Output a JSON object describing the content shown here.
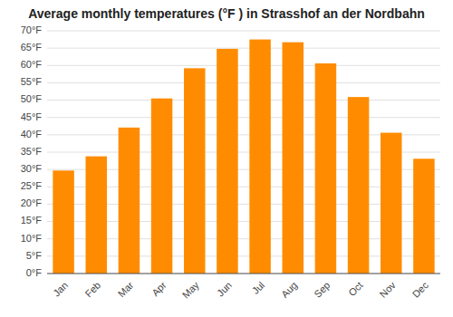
{
  "chart_data": {
    "type": "bar",
    "title": "Average monthly temperatures (°F ) in Strasshof an der Nordbahn",
    "categories": [
      "Jan",
      "Feb",
      "Mar",
      "Apr",
      "May",
      "Jun",
      "Jul",
      "Aug",
      "Sep",
      "Oct",
      "Nov",
      "Dec"
    ],
    "values": [
      29.7,
      33.8,
      42.1,
      50.5,
      59.2,
      64.8,
      67.5,
      66.7,
      60.6,
      50.9,
      40.6,
      33.1
    ],
    "color": "#FF8C00",
    "ylim": [
      0,
      70
    ],
    "yticks": [
      {
        "value": 0,
        "label": "0°F"
      },
      {
        "value": 5,
        "label": "5°F"
      },
      {
        "value": 10,
        "label": "10°F"
      },
      {
        "value": 15,
        "label": "15°F"
      },
      {
        "value": 20,
        "label": "20°F"
      },
      {
        "value": 25,
        "label": "25°F"
      },
      {
        "value": 30,
        "label": "30°F"
      },
      {
        "value": 35,
        "label": "35°F"
      },
      {
        "value": 40,
        "label": "40°F"
      },
      {
        "value": 45,
        "label": "45°F"
      },
      {
        "value": 50,
        "label": "50°F"
      },
      {
        "value": 55,
        "label": "55°F"
      },
      {
        "value": 60,
        "label": "60°F"
      },
      {
        "value": 65,
        "label": "65°F"
      },
      {
        "value": 70,
        "label": "70°F"
      }
    ],
    "grid": true
  }
}
